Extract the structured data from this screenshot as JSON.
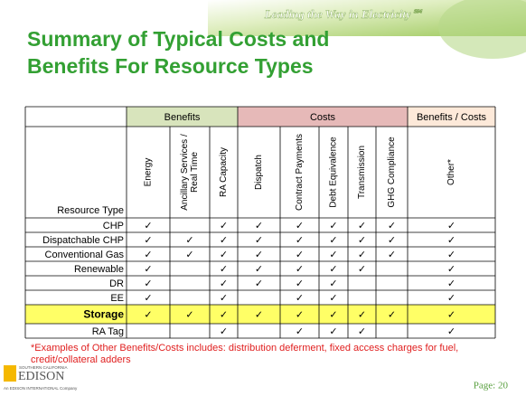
{
  "header": {
    "tagline": "Leading the Way in Electricity℠",
    "title_lines": [
      "Summary of Typical Costs and",
      "Benefits For Resource Types"
    ]
  },
  "table": {
    "groups": [
      "Benefits",
      "Costs",
      "Benefits / Costs"
    ],
    "row_header": "Resource Type",
    "columns": [
      [
        "Energy"
      ],
      [
        "Ancillary Services /",
        "Real Time"
      ],
      [
        "RA Capacity"
      ],
      [
        "Dispatch"
      ],
      [
        "Contract Payments"
      ],
      [
        "Debt Equivalence"
      ],
      [
        "Transmission"
      ],
      [
        "GHG Compliance"
      ],
      [
        "Other*"
      ]
    ],
    "rows": [
      {
        "label": "CHP",
        "cells": [
          "✓",
          null,
          "✓",
          "✓",
          "✓",
          "✓",
          "✓",
          "✓",
          "✓"
        ]
      },
      {
        "label": "Dispatchable CHP",
        "cells": [
          "✓",
          "✓",
          "✓",
          "✓",
          "✓",
          "✓",
          "✓",
          "✓",
          "✓"
        ]
      },
      {
        "label": "Conventional Gas",
        "cells": [
          "✓",
          "✓",
          "✓",
          "✓",
          "✓",
          "✓",
          "✓",
          "✓",
          "✓"
        ]
      },
      {
        "label": "Renewable",
        "cells": [
          "✓",
          null,
          "✓",
          "✓",
          "✓",
          "✓",
          "✓",
          null,
          "✓"
        ]
      },
      {
        "label": "DR",
        "cells": [
          "✓",
          null,
          "✓",
          "✓",
          "✓",
          "✓",
          null,
          null,
          "✓"
        ]
      },
      {
        "label": "EE",
        "cells": [
          "✓",
          null,
          "✓",
          null,
          "✓",
          "✓",
          null,
          null,
          "✓"
        ]
      },
      {
        "label": "Storage",
        "cells": [
          "✓",
          "✓",
          "✓",
          "✓",
          "✓",
          "✓",
          "✓",
          "✓",
          "✓"
        ]
      },
      {
        "label": "RA Tag",
        "cells": [
          null,
          null,
          "✓",
          null,
          "✓",
          "✓",
          "✓",
          null,
          "✓"
        ]
      }
    ]
  },
  "footnote_lines": [
    "*Examples of Other Benefits/Costs includes: distribution deferment, fixed access charges for fuel,",
    "credit/collateral adders"
  ],
  "logo": {
    "top": "SOUTHERN CALIFORNIA",
    "name": "EDISON",
    "bottom": "An EDISON INTERNATIONAL Company"
  },
  "page": "Page: 20"
}
